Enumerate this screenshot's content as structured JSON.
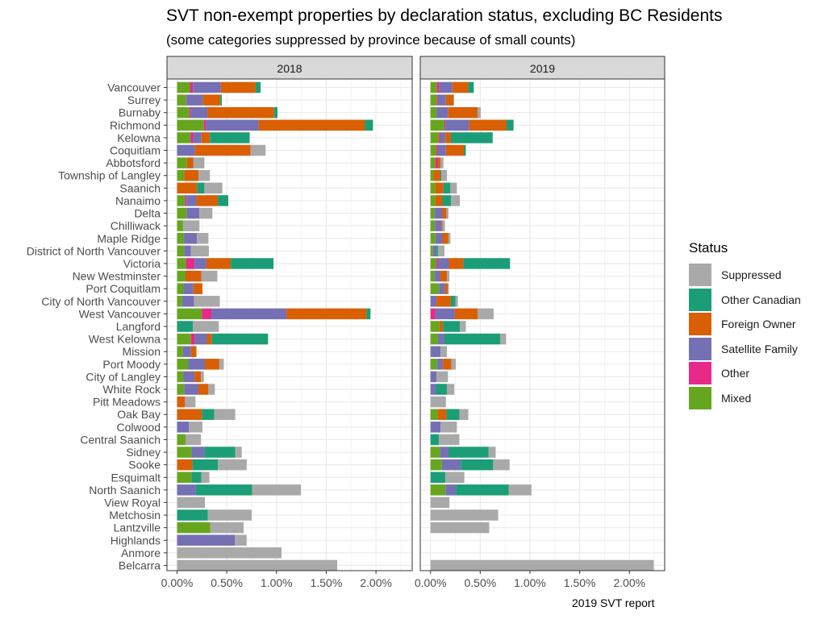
{
  "chart_data": {
    "type": "bar",
    "orientation": "horizontal",
    "stacked": true,
    "title": "SVT non-exempt properties by declaration status, excluding BC Residents",
    "subtitle": "(some categories suppressed by province because of small counts)",
    "caption": "2019 SVT report",
    "xlabel": "",
    "ylabel": "",
    "xlim": [
      0,
      2.3
    ],
    "x_ticks": [
      0,
      0.5,
      1.0,
      1.5,
      2.0
    ],
    "x_tick_labels": [
      "0.00%",
      "0.50%",
      "1.00%",
      "1.50%",
      "2.00%"
    ],
    "grid": true,
    "legend": {
      "title": "Status",
      "position": "right",
      "entries": [
        "Suppressed",
        "Other Canadian",
        "Foreign Owner",
        "Satellite Family",
        "Other",
        "Mixed"
      ]
    },
    "stack_order": [
      "Mixed",
      "Other",
      "Satellite Family",
      "Foreign Owner",
      "Other Canadian",
      "Suppressed"
    ],
    "colors": {
      "Suppressed": "#a9a9a9",
      "Other Canadian": "#1b9e77",
      "Foreign Owner": "#d95f02",
      "Satellite Family": "#7570b3",
      "Other": "#e7298a",
      "Mixed": "#66a61e"
    },
    "categories": [
      "Vancouver",
      "Surrey",
      "Burnaby",
      "Richmond",
      "Kelowna",
      "Coquitlam",
      "Abbotsford",
      "Township of Langley",
      "Saanich",
      "Nanaimo",
      "Delta",
      "Chilliwack",
      "Maple Ridge",
      "District of North Vancouver",
      "Victoria",
      "New Westminster",
      "Port Coquitlam",
      "City of North Vancouver",
      "West Vancouver",
      "Langford",
      "West Kelowna",
      "Mission",
      "Port Moody",
      "City of Langley",
      "White Rock",
      "Pitt Meadows",
      "Oak Bay",
      "Colwood",
      "Central Saanich",
      "Sidney",
      "Sooke",
      "Esquimalt",
      "North Saanich",
      "View Royal",
      "Metchosin",
      "Lantzville",
      "Highlands",
      "Anmore",
      "Belcarra"
    ],
    "value_unit": "percent",
    "panels": [
      {
        "label": "2018",
        "series": [
          {
            "name": "Mixed",
            "values": [
              0.13,
              0.09,
              0.125,
              0.27,
              0.135,
              0,
              0.1,
              0.07,
              0,
              0.08,
              0.095,
              0.06,
              0.07,
              0.07,
              0.09,
              0.085,
              0.065,
              0.05,
              0.25,
              0,
              0.14,
              0.06,
              0.11,
              0.065,
              0.07,
              0,
              0,
              0,
              0.085,
              0.145,
              0,
              0.145,
              0,
              0,
              0,
              0.335,
              0,
              0,
              0
            ]
          },
          {
            "name": "Other",
            "values": [
              0.03,
              0.005,
              0.015,
              0.02,
              0.03,
              0,
              0,
              0,
              0,
              0.015,
              0,
              0,
              0,
              0,
              0.085,
              0,
              0,
              0,
              0.095,
              0,
              0.04,
              0,
              0,
              0,
              0,
              0,
              0,
              0,
              0,
              0,
              0,
              0,
              0,
              0,
              0,
              0,
              0,
              0,
              0
            ]
          },
          {
            "name": "Satellite Family",
            "values": [
              0.28,
              0.165,
              0.165,
              0.53,
              0.08,
              0.18,
              0,
              0,
              0,
              0.1,
              0.13,
              0,
              0.13,
              0.07,
              0.12,
              0,
              0.1,
              0.12,
              0.755,
              0,
              0.12,
              0.08,
              0.17,
              0.11,
              0.145,
              0,
              0,
              0.12,
              0,
              0.13,
              0,
              0,
              0.19,
              0,
              0,
              0,
              0.58,
              0,
              0
            ]
          },
          {
            "name": "Foreign Owner",
            "values": [
              0.35,
              0.175,
              0.67,
              1.07,
              0.085,
              0.56,
              0.065,
              0.145,
              0.2,
              0.215,
              0,
              0,
              0,
              0,
              0.245,
              0.16,
              0.09,
              0,
              0.805,
              0,
              0.05,
              0.055,
              0.145,
              0.065,
              0.1,
              0.08,
              0.25,
              0,
              0,
              0,
              0.155,
              0,
              0,
              0,
              0,
              0,
              0,
              0,
              0
            ]
          },
          {
            "name": "Other Canadian",
            "values": [
              0.05,
              0.015,
              0.035,
              0.08,
              0.4,
              0,
              0,
              0,
              0.075,
              0.105,
              0,
              0,
              0,
              0,
              0.43,
              0,
              0,
              0,
              0.04,
              0.16,
              0.565,
              0,
              0,
              0,
              0,
              0,
              0.125,
              0,
              0,
              0.31,
              0.255,
              0.1,
              0.565,
              0,
              0.31,
              0,
              0,
              0,
              0
            ]
          },
          {
            "name": "Suppressed",
            "values": [
              0,
              0,
              0,
              0,
              0,
              0.15,
              0.11,
              0.115,
              0.18,
              0,
              0.13,
              0.165,
              0.115,
              0.18,
              0,
              0.16,
              0,
              0.26,
              0,
              0.26,
              0,
              0,
              0.045,
              0.03,
              0.065,
              0.105,
              0.21,
              0.135,
              0.155,
              0.065,
              0.29,
              0.08,
              0.49,
              0.28,
              0.44,
              0.335,
              0.12,
              1.05,
              1.61
            ]
          }
        ]
      },
      {
        "label": "2019",
        "series": [
          {
            "name": "Mixed",
            "values": [
              0.065,
              0.065,
              0.06,
              0.14,
              0.085,
              0.06,
              0.05,
              0.03,
              0.045,
              0.05,
              0.04,
              0.045,
              0.05,
              0.025,
              0.06,
              0.04,
              0.085,
              0,
              0,
              0.09,
              0.075,
              0,
              0.065,
              0,
              0,
              0,
              0.075,
              0,
              0,
              0.095,
              0.115,
              0,
              0.15,
              0,
              0,
              0,
              0,
              0,
              0
            ]
          },
          {
            "name": "Other",
            "values": [
              0.025,
              0.01,
              0,
              0.01,
              0.015,
              0.015,
              0.025,
              0,
              0,
              0,
              0,
              0,
              0,
              0,
              0.015,
              0,
              0,
              0,
              0.05,
              0,
              0,
              0,
              0,
              0,
              0,
              0,
              0,
              0,
              0,
              0,
              0,
              0,
              0,
              0,
              0,
              0,
              0,
              0,
              0
            ]
          },
          {
            "name": "Satellite Family",
            "values": [
              0.13,
              0.08,
              0.115,
              0.24,
              0.05,
              0.08,
              0,
              0,
              0,
              0,
              0.08,
              0.065,
              0.07,
              0.035,
              0.11,
              0.06,
              0.06,
              0.06,
              0.195,
              0,
              0.065,
              0.1,
              0.06,
              0.06,
              0.055,
              0,
              0,
              0.1,
              0,
              0.09,
              0.19,
              0,
              0.105,
              0,
              0,
              0,
              0,
              0,
              0
            ]
          },
          {
            "name": "Foreign Owner",
            "values": [
              0.16,
              0.075,
              0.3,
              0.375,
              0.055,
              0.18,
              0.025,
              0.07,
              0.085,
              0.07,
              0.04,
              0.01,
              0.06,
              0,
              0.145,
              0.065,
              0.03,
              0.145,
              0.23,
              0.035,
              0,
              0,
              0.085,
              0,
              0,
              0,
              0.085,
              0,
              0,
              0,
              0,
              0,
              0,
              0,
              0,
              0,
              0,
              0,
              0
            ]
          },
          {
            "name": "Other Canadian",
            "values": [
              0.055,
              0.005,
              0,
              0.07,
              0.42,
              0.02,
              0,
              0.01,
              0.07,
              0.085,
              0,
              0,
              0,
              0.015,
              0.47,
              0,
              0,
              0.045,
              0,
              0.17,
              0.56,
              0,
              0,
              0,
              0.11,
              0,
              0.13,
              0,
              0.085,
              0.4,
              0.325,
              0.15,
              0.53,
              0,
              0,
              0,
              0,
              0,
              0
            ]
          },
          {
            "name": "Suppressed",
            "values": [
              0,
              0,
              0.03,
              0,
              0,
              0,
              0.03,
              0.055,
              0.065,
              0.09,
              0.02,
              0.025,
              0.02,
              0.065,
              0,
              0.025,
              0.01,
              0.025,
              0.16,
              0.06,
              0.06,
              0.065,
              0.045,
              0.115,
              0.075,
              0.155,
              0.09,
              0.165,
              0.205,
              0.07,
              0.165,
              0.19,
              0.23,
              0.19,
              0.68,
              0.59,
              0,
              0,
              2.245
            ]
          }
        ]
      }
    ]
  }
}
